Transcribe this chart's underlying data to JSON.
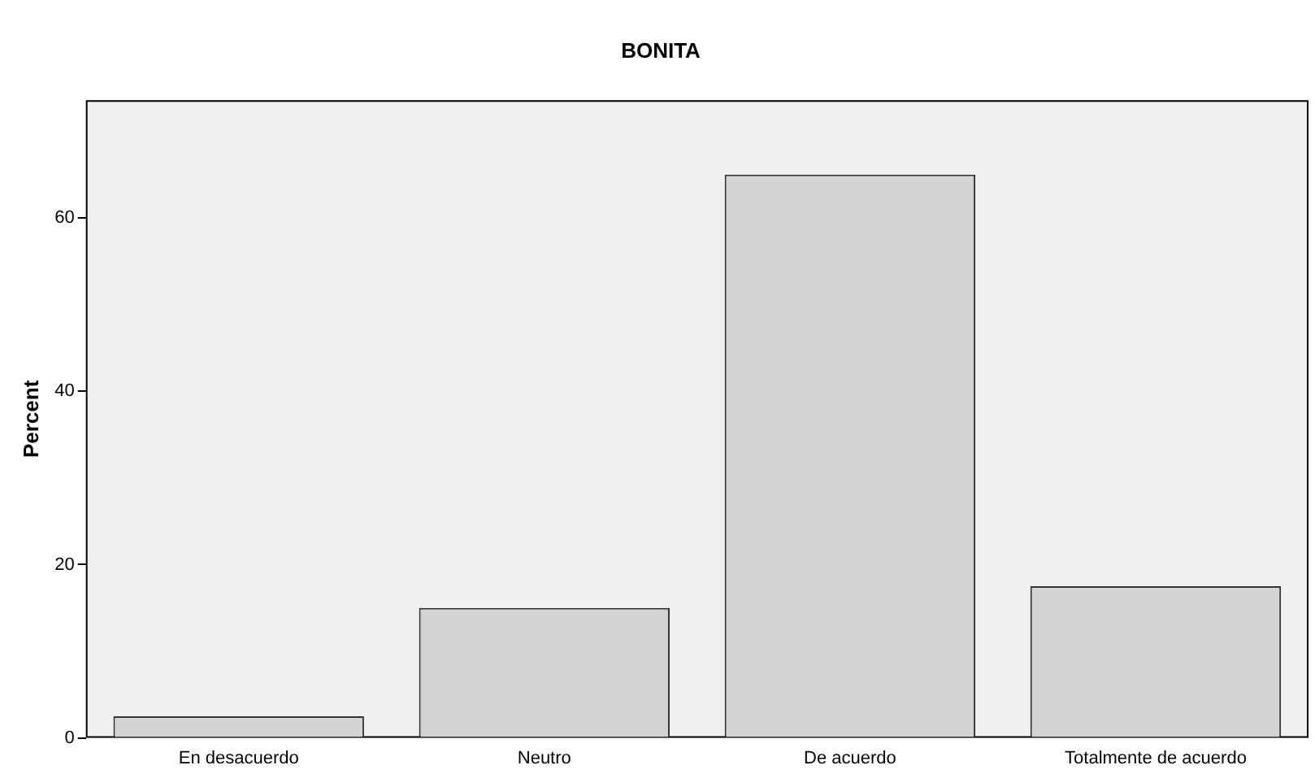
{
  "chart_data": {
    "type": "bar",
    "title": "BONITA",
    "ylabel": "Percent",
    "categories": [
      "En desacuerdo",
      "Neutro",
      "De acuerdo",
      "Totalmente de acuerdo"
    ],
    "values": [
      2.5,
      15,
      65,
      17.5
    ],
    "color": "#d3d3d3",
    "ylim": [
      0,
      73.6
    ],
    "yticks": [
      0,
      20,
      40,
      60
    ],
    "grid": false,
    "legend": false
  }
}
